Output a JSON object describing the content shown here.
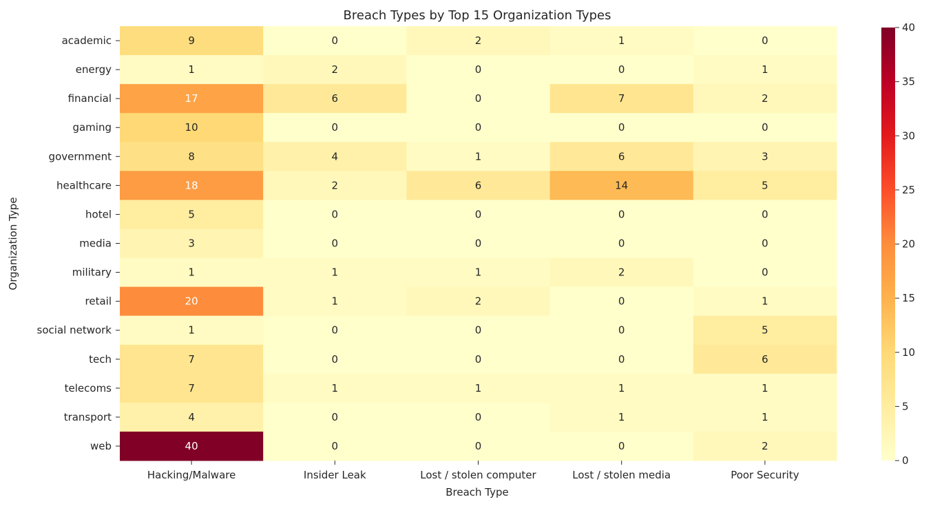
{
  "chart_data": {
    "type": "heatmap",
    "title": "Breach Types by Top 15 Organization Types",
    "xlabel": "Breach Type",
    "ylabel": "Organization Type",
    "columns": [
      "Hacking/Malware",
      "Insider Leak",
      "Lost / stolen computer",
      "Lost / stolen media",
      "Poor Security"
    ],
    "rows": [
      "academic",
      "energy",
      "financial",
      "gaming",
      "government",
      "healthcare",
      "hotel",
      "media",
      "military",
      "retail",
      "social network",
      "tech",
      "telecoms",
      "transport",
      "web"
    ],
    "values": [
      [
        9,
        0,
        2,
        1,
        0
      ],
      [
        1,
        2,
        0,
        0,
        1
      ],
      [
        17,
        6,
        0,
        7,
        2
      ],
      [
        10,
        0,
        0,
        0,
        0
      ],
      [
        8,
        4,
        1,
        6,
        3
      ],
      [
        18,
        2,
        6,
        14,
        5
      ],
      [
        5,
        0,
        0,
        0,
        0
      ],
      [
        3,
        0,
        0,
        0,
        0
      ],
      [
        1,
        1,
        1,
        2,
        0
      ],
      [
        20,
        1,
        2,
        0,
        1
      ],
      [
        1,
        0,
        0,
        0,
        5
      ],
      [
        7,
        0,
        0,
        0,
        6
      ],
      [
        7,
        1,
        1,
        1,
        1
      ],
      [
        4,
        0,
        0,
        1,
        1
      ],
      [
        40,
        0,
        0,
        0,
        2
      ]
    ],
    "colorbar": {
      "min": 0,
      "max": 40,
      "ticks": [
        0,
        5,
        10,
        15,
        20,
        25,
        30,
        35,
        40
      ]
    },
    "colormap": "YlOrRd",
    "colors": [
      "#ffffcc",
      "#ffeda0",
      "#fed976",
      "#feb24c",
      "#fd8d3c",
      "#fc4e2a",
      "#e31a1c",
      "#bd0026",
      "#800026"
    ]
  }
}
